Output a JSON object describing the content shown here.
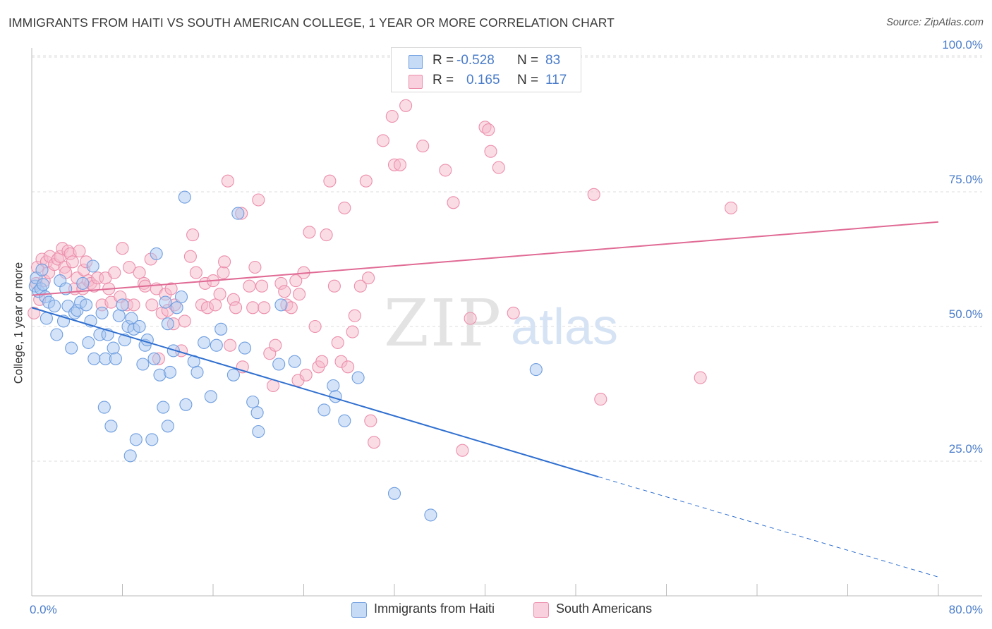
{
  "title": "IMMIGRANTS FROM HAITI VS SOUTH AMERICAN COLLEGE, 1 YEAR OR MORE CORRELATION CHART",
  "source": "Source: ZipAtlas.com",
  "watermark": {
    "zip": "ZIP",
    "atlas": "atlas"
  },
  "legend": {
    "rows": [
      {
        "r_label": "R =",
        "r_value": "-0.528",
        "n_label": "N =",
        "n_value": "83",
        "color": "#a9c8f0"
      },
      {
        "r_label": "R =",
        "r_value": "0.165",
        "n_label": "N =",
        "n_value": "117",
        "color": "#f6b9cc"
      }
    ]
  },
  "bottom_legend": {
    "haiti": "Immigrants from Haiti",
    "south": "South Americans"
  },
  "colors": {
    "haiti_fill": "#a9c8f0",
    "haiti_stroke": "#6f9ee0",
    "haiti_line": "#2f6fd0",
    "south_fill": "#f6b9cc",
    "south_stroke": "#ec8fac",
    "south_line": "#e06a94",
    "axis_text": "#4a7cc9",
    "grid": "#dddddd"
  },
  "chart_data": {
    "type": "scatter",
    "title": "IMMIGRANTS FROM HAITI VS SOUTH AMERICAN COLLEGE, 1 YEAR OR MORE CORRELATION CHART",
    "xlabel": "",
    "ylabel": "College, 1 year or more",
    "xlim": [
      0,
      80
    ],
    "ylim": [
      0,
      105
    ],
    "x_tick_labels": [
      "0.0%",
      "80.0%"
    ],
    "y_ticks": [
      25,
      50,
      75,
      100
    ],
    "y_tick_labels": [
      "25.0%",
      "50.0%",
      "75.0%",
      "100.0%"
    ],
    "grid": "horizontal dashed",
    "legend_position": "top-center",
    "series": [
      {
        "name": "Immigrants from Haiti",
        "R": -0.528,
        "N": 83,
        "trend": {
          "x": [
            0,
            50
          ],
          "y": [
            53.5,
            22.1
          ],
          "dashed_extension": {
            "x": [
              50,
              80
            ],
            "y": [
              22.1,
              3.5
            ]
          }
        },
        "points": [
          [
            0.3,
            57.5
          ],
          [
            0.4,
            59
          ],
          [
            0.6,
            56.5
          ],
          [
            0.8,
            57
          ],
          [
            0.9,
            60.5
          ],
          [
            1.0,
            57.8
          ],
          [
            1.2,
            55.5
          ],
          [
            1.3,
            51.5
          ],
          [
            1.5,
            54.5
          ],
          [
            2.0,
            53.8
          ],
          [
            2.2,
            48.5
          ],
          [
            2.5,
            58.5
          ],
          [
            2.8,
            51
          ],
          [
            3.0,
            57
          ],
          [
            3.2,
            53.8
          ],
          [
            3.5,
            46
          ],
          [
            3.8,
            52.5
          ],
          [
            4.0,
            53
          ],
          [
            4.3,
            54.5
          ],
          [
            4.5,
            58
          ],
          [
            4.8,
            54
          ],
          [
            5.0,
            47
          ],
          [
            5.2,
            51
          ],
          [
            5.5,
            44
          ],
          [
            5.4,
            61.2
          ],
          [
            6.0,
            48.5
          ],
          [
            6.2,
            52.5
          ],
          [
            6.5,
            44
          ],
          [
            6.7,
            48.5
          ],
          [
            6.4,
            35
          ],
          [
            7.0,
            31.5
          ],
          [
            7.2,
            46
          ],
          [
            7.4,
            44
          ],
          [
            7.7,
            52
          ],
          [
            8.0,
            54
          ],
          [
            8.2,
            47.5
          ],
          [
            8.5,
            50
          ],
          [
            8.7,
            26
          ],
          [
            8.8,
            51.5
          ],
          [
            9.0,
            49.5
          ],
          [
            9.5,
            50
          ],
          [
            9.2,
            29
          ],
          [
            9.8,
            43
          ],
          [
            10.0,
            46.5
          ],
          [
            10.2,
            47.5
          ],
          [
            10.6,
            29
          ],
          [
            10.8,
            44
          ],
          [
            11.0,
            63.5
          ],
          [
            11.3,
            41
          ],
          [
            11.6,
            35
          ],
          [
            12.0,
            31.5
          ],
          [
            11.8,
            54.5
          ],
          [
            12.0,
            50.5
          ],
          [
            12.2,
            41.5
          ],
          [
            12.5,
            45.5
          ],
          [
            12.8,
            53.5
          ],
          [
            13.2,
            55.5
          ],
          [
            13.5,
            74
          ],
          [
            13.6,
            35.5
          ],
          [
            14.3,
            43.5
          ],
          [
            14.6,
            41.5
          ],
          [
            15.2,
            47
          ],
          [
            15.8,
            37
          ],
          [
            16.3,
            46.5
          ],
          [
            16.7,
            49.5
          ],
          [
            17.8,
            41
          ],
          [
            18.2,
            71
          ],
          [
            18.8,
            46
          ],
          [
            19.5,
            36
          ],
          [
            19.9,
            34
          ],
          [
            20.0,
            30.5
          ],
          [
            21.8,
            43
          ],
          [
            22.0,
            54
          ],
          [
            23.2,
            43.5
          ],
          [
            25.8,
            34.5
          ],
          [
            26.6,
            39
          ],
          [
            26.8,
            37
          ],
          [
            27.6,
            32.5
          ],
          [
            28.8,
            40.5
          ],
          [
            32.0,
            19
          ],
          [
            35.2,
            15
          ],
          [
            44.5,
            42
          ]
        ]
      },
      {
        "name": "South Americans",
        "R": 0.165,
        "N": 117,
        "trend": {
          "x": [
            0,
            80
          ],
          "y": [
            55.8,
            69.4
          ]
        },
        "points": [
          [
            0.2,
            52.5
          ],
          [
            0.4,
            58
          ],
          [
            0.5,
            61
          ],
          [
            0.7,
            55
          ],
          [
            0.9,
            62.5
          ],
          [
            1.1,
            58.5
          ],
          [
            1.3,
            62
          ],
          [
            1.5,
            60
          ],
          [
            1.6,
            63
          ],
          [
            2.0,
            61.5
          ],
          [
            2.3,
            62.5
          ],
          [
            2.5,
            63
          ],
          [
            2.7,
            64.5
          ],
          [
            2.9,
            61
          ],
          [
            3.0,
            60
          ],
          [
            3.2,
            64
          ],
          [
            3.4,
            63.5
          ],
          [
            3.6,
            62
          ],
          [
            3.8,
            57
          ],
          [
            4.0,
            59
          ],
          [
            4.2,
            64
          ],
          [
            4.5,
            57
          ],
          [
            4.6,
            60.5
          ],
          [
            4.8,
            62
          ],
          [
            5.0,
            58.5
          ],
          [
            5.2,
            58
          ],
          [
            5.5,
            57.5
          ],
          [
            5.8,
            59
          ],
          [
            6.2,
            54
          ],
          [
            6.5,
            59
          ],
          [
            6.8,
            57
          ],
          [
            7.0,
            54.5
          ],
          [
            7.3,
            60
          ],
          [
            7.8,
            55.5
          ],
          [
            8.0,
            64.5
          ],
          [
            8.4,
            54
          ],
          [
            8.6,
            61
          ],
          [
            9.0,
            54
          ],
          [
            9.5,
            60
          ],
          [
            9.9,
            58
          ],
          [
            10.0,
            57.5
          ],
          [
            10.5,
            62.5
          ],
          [
            10.6,
            54
          ],
          [
            11.0,
            57
          ],
          [
            11.2,
            44
          ],
          [
            11.5,
            52.5
          ],
          [
            11.8,
            56
          ],
          [
            12.0,
            53
          ],
          [
            12.3,
            57
          ],
          [
            12.5,
            50.5
          ],
          [
            12.6,
            54
          ],
          [
            13.2,
            45.5
          ],
          [
            13.5,
            51
          ],
          [
            14.0,
            63
          ],
          [
            14.2,
            67
          ],
          [
            14.5,
            60
          ],
          [
            15.0,
            54
          ],
          [
            15.3,
            58
          ],
          [
            15.5,
            53.5
          ],
          [
            16.0,
            58.5
          ],
          [
            16.2,
            54
          ],
          [
            16.6,
            56
          ],
          [
            16.9,
            60
          ],
          [
            17.0,
            62
          ],
          [
            17.3,
            77
          ],
          [
            17.5,
            46.5
          ],
          [
            17.8,
            55
          ],
          [
            18.0,
            53.5
          ],
          [
            18.6,
            42.5
          ],
          [
            18.5,
            71
          ],
          [
            19.2,
            57.5
          ],
          [
            19.5,
            53.5
          ],
          [
            19.7,
            61
          ],
          [
            20.0,
            73.5
          ],
          [
            20.3,
            57.5
          ],
          [
            20.5,
            53.5
          ],
          [
            21.0,
            45
          ],
          [
            21.3,
            39
          ],
          [
            21.5,
            46.5
          ],
          [
            22.0,
            58
          ],
          [
            22.3,
            56.5
          ],
          [
            22.5,
            54
          ],
          [
            22.9,
            53.5
          ],
          [
            23.3,
            58.5
          ],
          [
            23.5,
            40
          ],
          [
            23.6,
            56
          ],
          [
            24.0,
            60
          ],
          [
            24.2,
            41
          ],
          [
            24.5,
            67.5
          ],
          [
            25.0,
            50
          ],
          [
            25.3,
            42.5
          ],
          [
            25.6,
            43.5
          ],
          [
            26.0,
            67
          ],
          [
            26.3,
            77
          ],
          [
            26.7,
            57.5
          ],
          [
            27.0,
            47
          ],
          [
            27.3,
            43.5
          ],
          [
            27.6,
            72
          ],
          [
            27.9,
            42.5
          ],
          [
            28.3,
            49
          ],
          [
            28.5,
            52
          ],
          [
            29.0,
            57.5
          ],
          [
            29.5,
            77
          ],
          [
            29.7,
            59
          ],
          [
            29.9,
            32.5
          ],
          [
            30.2,
            28.5
          ],
          [
            31.0,
            84.5
          ],
          [
            32.0,
            80
          ],
          [
            31.8,
            89
          ],
          [
            32.5,
            80
          ],
          [
            33.0,
            91
          ],
          [
            34.5,
            83.5
          ],
          [
            36.5,
            79
          ],
          [
            37.2,
            73
          ],
          [
            38.0,
            27
          ],
          [
            38.7,
            51.5
          ],
          [
            40.0,
            87
          ],
          [
            40.3,
            86.5
          ],
          [
            40.5,
            82.5
          ],
          [
            41.2,
            79.5
          ],
          [
            42.5,
            52.5
          ],
          [
            49.6,
            74.5
          ],
          [
            50.2,
            36.5
          ],
          [
            59.0,
            40.5
          ],
          [
            61.7,
            72
          ]
        ]
      }
    ]
  }
}
